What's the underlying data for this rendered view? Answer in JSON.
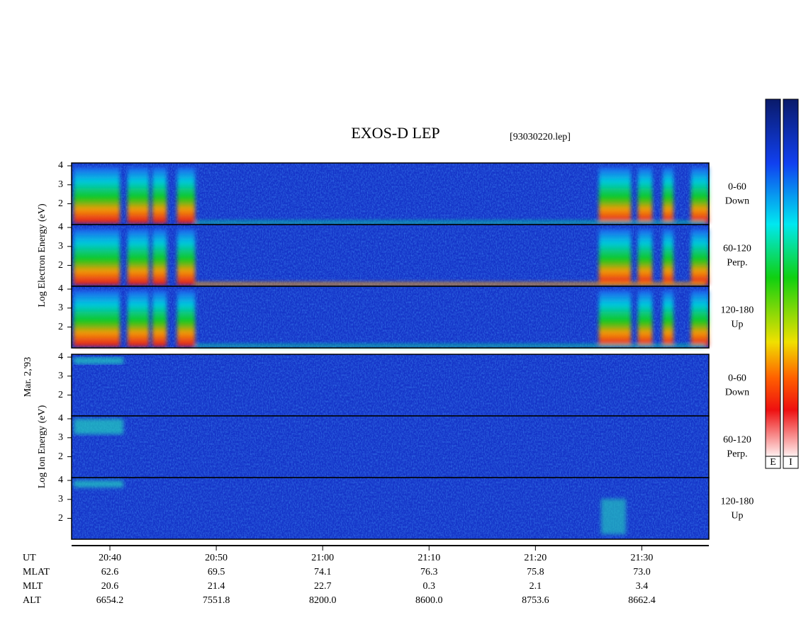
{
  "chart_data": {
    "type": "spectrogram",
    "title": "EXOS-D LEP",
    "file": "[93030220.lep]",
    "date": "Mar. 2,'93",
    "xlabel": "UT",
    "xlim": [
      1236.4,
      1296.3
    ],
    "xticks": [
      {
        "value": 1240,
        "label": "20:40"
      },
      {
        "value": 1250,
        "label": "20:50"
      },
      {
        "value": 1260,
        "label": "21:00"
      },
      {
        "value": 1270,
        "label": "21:10"
      },
      {
        "value": 1280,
        "label": "21:20"
      },
      {
        "value": 1290,
        "label": "21:30"
      }
    ],
    "ylim": [
      0.9,
      4.15
    ],
    "yticks": [
      2,
      3,
      4
    ],
    "groups": [
      {
        "ylabel": "Log Electron Energy (eV)",
        "panels": [
          {
            "angle": "0-60",
            "direction": "Down"
          },
          {
            "angle": "60-120",
            "direction": "Perp."
          },
          {
            "angle": "120-180",
            "direction": "Up"
          }
        ]
      },
      {
        "ylabel": "Log Ion Energy (eV)",
        "panels": [
          {
            "angle": "0-60",
            "direction": "Down"
          },
          {
            "angle": "60-120",
            "direction": "Perp."
          },
          {
            "angle": "120-180",
            "direction": "Up"
          }
        ]
      }
    ],
    "ephemeris": [
      {
        "name": "MLAT",
        "values": [
          "62.6",
          "69.5",
          "74.1",
          "76.3",
          "75.8",
          "73.0"
        ]
      },
      {
        "name": "MLT",
        "values": [
          "20.6",
          "21.4",
          "22.7",
          "0.3",
          "2.1",
          "3.4"
        ]
      },
      {
        "name": "ALT",
        "values": [
          "6654.2",
          "7551.8",
          "8200.0",
          "8600.0",
          "8753.6",
          "8662.4"
        ]
      }
    ],
    "colorbars": [
      {
        "label": "E"
      },
      {
        "label": "I"
      }
    ]
  }
}
